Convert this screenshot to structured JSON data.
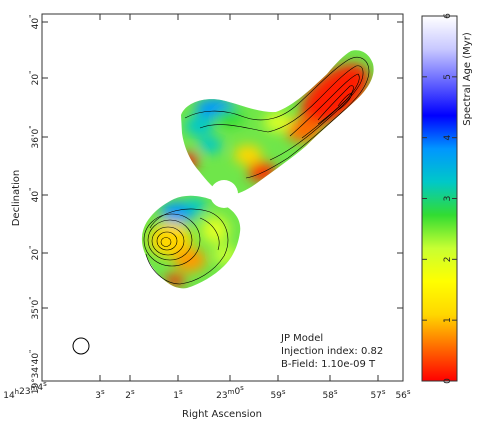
{
  "chart_data": {
    "type": "heatmap",
    "xlabel": "Right Ascension",
    "ylabel": "Declination",
    "colorbar_label": "Spectral Age (Myr)",
    "colorbar_range": [
      0,
      6
    ],
    "colorbar_ticks": [
      "0",
      "1",
      "2",
      "3",
      "4",
      "5",
      "6"
    ],
    "colormap": [
      "#ff0000",
      "#ff6a00",
      "#ffd700",
      "#ffff00",
      "#c8ff32",
      "#32dc32",
      "#00c8c8",
      "#0096ff",
      "#0000ff",
      "#6464ff",
      "#c8c8ff",
      "#ffffff"
    ],
    "x_ticks": [
      {
        "h": "14",
        "hu": "h",
        "m": "23",
        "mu": "m",
        "s": "4",
        "su": "s"
      },
      {
        "s": "3",
        "su": "s"
      },
      {
        "s": "2",
        "su": "s"
      },
      {
        "s": "1",
        "su": "s"
      },
      {
        "m": "23",
        "mu": "m",
        "s": "0",
        "su": "s"
      },
      {
        "s": "59",
        "su": "s"
      },
      {
        "s": "58",
        "su": "s"
      },
      {
        "s": "57",
        "su": "s"
      },
      {
        "s": "56",
        "su": "s"
      }
    ],
    "y_ticks": [
      {
        "main": "40",
        "unit": "\""
      },
      {
        "main": "20",
        "unit": "\""
      },
      {
        "main": "36'0",
        "unit": "\""
      },
      {
        "main": "40",
        "unit": "\""
      },
      {
        "main": "20",
        "unit": "\""
      },
      {
        "main": "35'0",
        "unit": "\""
      },
      {
        "main": "19°34'40",
        "unit": "\""
      }
    ],
    "annotation": {
      "model": "JP Model",
      "injection": "Injection index: 0.82",
      "bfield": "B-Field: 1.10e-09 T"
    },
    "beam": "circle"
  }
}
